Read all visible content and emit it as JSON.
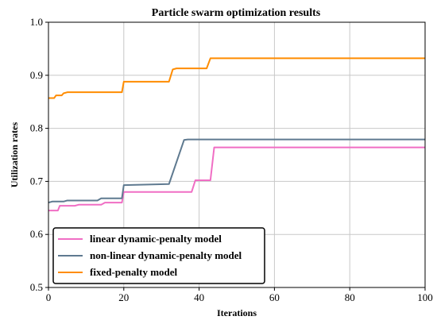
{
  "chart_data": {
    "type": "line",
    "title": "Particle swarm optimization results",
    "xlabel": "Iterations",
    "ylabel": "Utilization rates",
    "xlim": [
      0,
      100
    ],
    "ylim": [
      0.5,
      1.0
    ],
    "xticks": [
      0,
      20,
      40,
      60,
      80,
      100
    ],
    "yticks": [
      0.5,
      0.6,
      0.7,
      0.8,
      0.9,
      1.0
    ],
    "xtick_labels": [
      "0",
      "20",
      "40",
      "60",
      "80",
      "100"
    ],
    "ytick_labels": [
      "0.5",
      "0.6",
      "0.7",
      "0.8",
      "0.9",
      "1.0"
    ],
    "grid": true,
    "legend_position": "bottom-left",
    "series": [
      {
        "name": "linear dynamic-penalty model",
        "color": "#f06ec4",
        "points": [
          [
            0,
            0.645
          ],
          [
            2.5,
            0.645
          ],
          [
            3,
            0.654
          ],
          [
            7,
            0.654
          ],
          [
            8,
            0.656
          ],
          [
            14,
            0.656
          ],
          [
            15,
            0.66
          ],
          [
            19.5,
            0.66
          ],
          [
            20,
            0.68
          ],
          [
            38,
            0.68
          ],
          [
            39,
            0.702
          ],
          [
            43,
            0.702
          ],
          [
            44,
            0.764
          ],
          [
            100,
            0.764
          ]
        ]
      },
      {
        "name": "non-linear dynamic-penalty model",
        "color": "#5f7a90",
        "points": [
          [
            0,
            0.66
          ],
          [
            1,
            0.662
          ],
          [
            4,
            0.662
          ],
          [
            5,
            0.664
          ],
          [
            13,
            0.664
          ],
          [
            14,
            0.668
          ],
          [
            19.5,
            0.668
          ],
          [
            20,
            0.693
          ],
          [
            32,
            0.695
          ],
          [
            36,
            0.778
          ],
          [
            37,
            0.779
          ],
          [
            100,
            0.779
          ]
        ]
      },
      {
        "name": "fixed-penalty model",
        "color": "#ff8c00",
        "points": [
          [
            0,
            0.857
          ],
          [
            1.5,
            0.857
          ],
          [
            2,
            0.862
          ],
          [
            3.5,
            0.862
          ],
          [
            4,
            0.866
          ],
          [
            5,
            0.868
          ],
          [
            19.5,
            0.868
          ],
          [
            20,
            0.888
          ],
          [
            32,
            0.888
          ],
          [
            33,
            0.911
          ],
          [
            34,
            0.913
          ],
          [
            42,
            0.913
          ],
          [
            43,
            0.932
          ],
          [
            100,
            0.932
          ]
        ]
      }
    ]
  }
}
